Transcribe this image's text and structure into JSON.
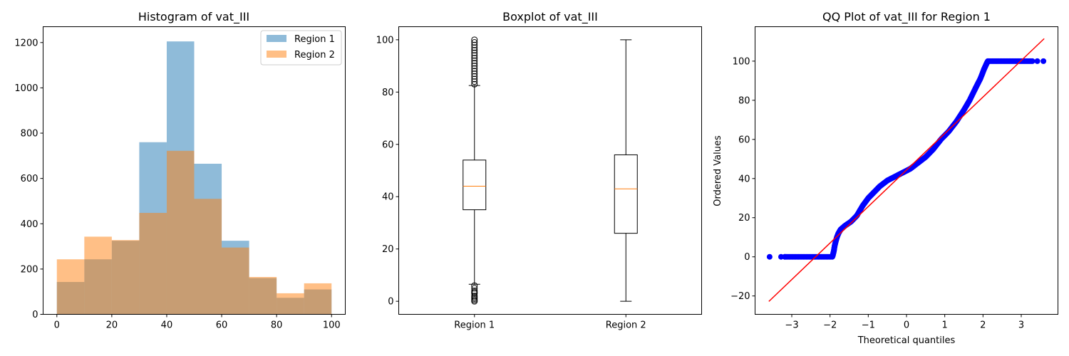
{
  "chart_data": [
    {
      "type": "bar",
      "subtype": "histogram",
      "title": "Histogram of vat_III",
      "xlabel": "",
      "ylabel": "",
      "xlim": [
        -5,
        105
      ],
      "ylim": [
        0,
        1270
      ],
      "xticks": [
        0,
        20,
        40,
        60,
        80,
        100
      ],
      "yticks": [
        0,
        200,
        400,
        600,
        800,
        1000,
        1200
      ],
      "bin_edges": [
        0,
        10,
        20,
        30,
        40,
        50,
        60,
        70,
        80,
        90,
        100
      ],
      "legend_position": "top-right",
      "grid": false,
      "series": [
        {
          "name": "Region 1",
          "color": "#1f77b4",
          "alpha": 0.5,
          "values": [
            143,
            243,
            325,
            760,
            1205,
            665,
            325,
            160,
            73,
            110
          ]
        },
        {
          "name": "Region 2",
          "color": "#ff7f0e",
          "alpha": 0.5,
          "values": [
            243,
            343,
            328,
            448,
            722,
            510,
            295,
            165,
            93,
            137
          ]
        }
      ]
    },
    {
      "type": "box",
      "title": "Boxplot of vat_III",
      "xlabel": "",
      "ylabel": "",
      "ylim": [
        -5,
        105
      ],
      "yticks": [
        0,
        20,
        40,
        60,
        80,
        100
      ],
      "categories": [
        "Region 1",
        "Region 2"
      ],
      "grid": false,
      "boxes": [
        {
          "name": "Region 1",
          "whislo": 6.5,
          "q1": 35,
          "median": 44,
          "q3": 54,
          "whishi": 82.5,
          "fliers": [
            0,
            0.5,
            1,
            1.5,
            2,
            3,
            3.5,
            4,
            5,
            6,
            83,
            84,
            85,
            86,
            87,
            88,
            89,
            90,
            91,
            92,
            93,
            94,
            95,
            96,
            97,
            98,
            99,
            100
          ]
        },
        {
          "name": "Region 2",
          "whislo": 0,
          "q1": 26,
          "median": 43,
          "q3": 56,
          "whishi": 100,
          "fliers": []
        }
      ]
    },
    {
      "type": "scatter",
      "subtype": "qq",
      "title": "QQ Plot of vat_III for Region 1",
      "xlabel": "Theoretical quantiles",
      "ylabel": "Ordered Values",
      "xlim": [
        -3.96,
        3.96
      ],
      "ylim": [
        -29.4,
        117.6
      ],
      "xticks": [
        -3,
        -2,
        -1,
        0,
        1,
        2,
        3
      ],
      "yticks": [
        -20,
        0,
        20,
        40,
        60,
        80,
        100
      ],
      "grid": false,
      "points_color": "#0000ff",
      "fit_line": {
        "color": "#ff0000",
        "x": [
          -3.6,
          3.6
        ],
        "y": [
          -22.8,
          111.5
        ]
      },
      "curve": {
        "x": [
          -1.93,
          -1.9,
          -1.88,
          -1.85,
          -1.82,
          -1.78,
          -1.72,
          -1.6,
          -1.45,
          -1.3,
          -1.15,
          -1.0,
          -0.85,
          -0.7,
          -0.5,
          -0.3,
          -0.1,
          0.1,
          0.3,
          0.5,
          0.7,
          0.9,
          1.1,
          1.3,
          1.5,
          1.65,
          1.8,
          1.93,
          2.03,
          2.1,
          2.13
        ],
        "y": [
          0.5,
          3,
          5.5,
          8,
          10,
          12,
          14,
          16,
          18,
          21,
          26,
          30,
          33,
          36,
          39,
          41,
          43,
          45,
          48,
          51,
          55,
          60,
          64,
          69,
          75,
          80,
          86,
          91,
          96,
          99,
          100
        ]
      },
      "left_tail": {
        "x_min": -3.58,
        "x_max": -1.93,
        "y": 0,
        "outliers_x": [
          -3.58,
          -3.28,
          -3.18
        ]
      },
      "right_tail": {
        "x_min": 2.13,
        "x_max": 3.3,
        "y": 100,
        "outliers_x": [
          3.42,
          3.58
        ]
      }
    }
  ]
}
